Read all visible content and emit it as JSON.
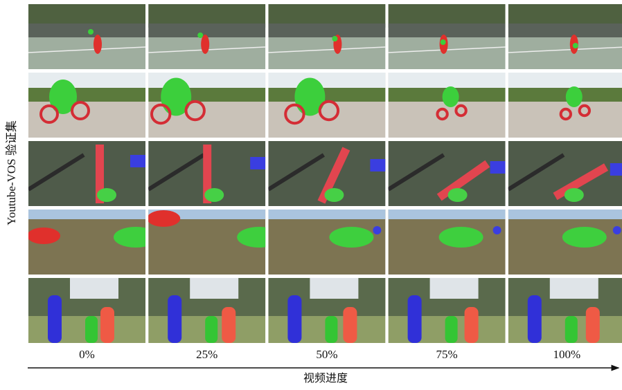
{
  "figure": {
    "y_label": "Youtube-VOS 验证集",
    "columns": [
      "0%",
      "25%",
      "50%",
      "75%",
      "100%"
    ],
    "x_label": "视频进度"
  }
}
